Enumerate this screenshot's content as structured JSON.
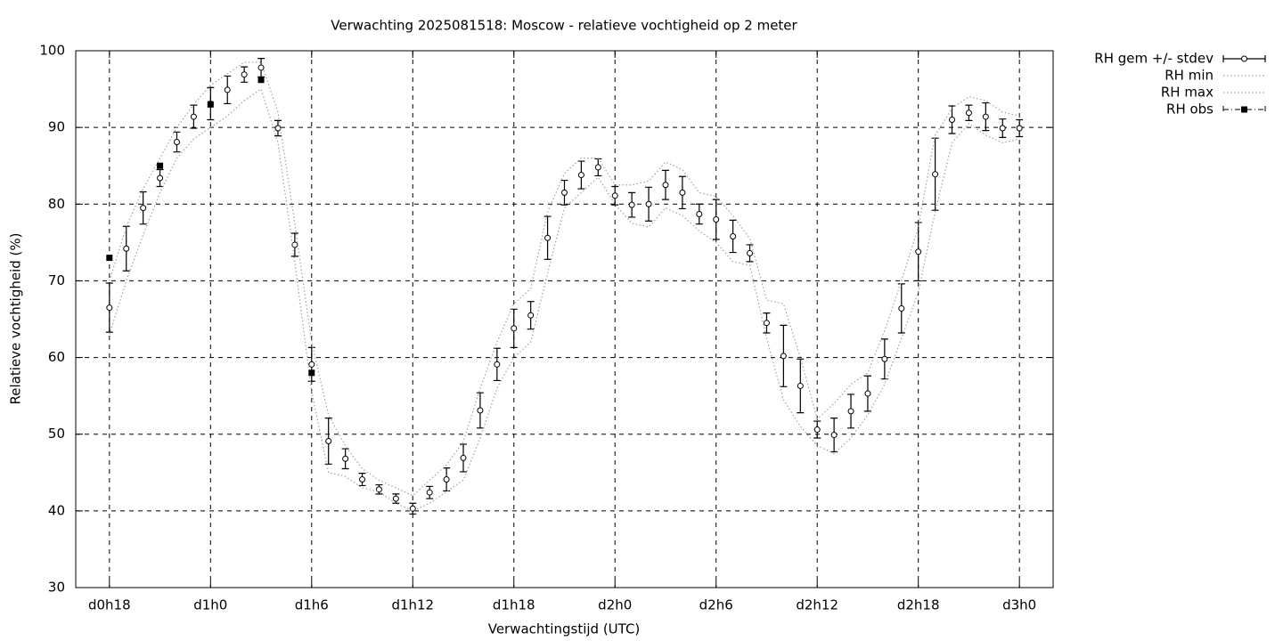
{
  "chart_data": {
    "type": "errorbar",
    "title": "Verwachting 2025081518: Moscow - relatieve vochtigheid op 2 meter",
    "xlabel": "Verwachtingstijd (UTC)",
    "ylabel": "Relatieve vochtigheid (%)",
    "x": [
      18,
      19,
      20,
      21,
      22,
      23,
      24,
      25,
      26,
      27,
      28,
      29,
      30,
      31,
      32,
      33,
      34,
      35,
      36,
      37,
      38,
      39,
      40,
      41,
      42,
      43,
      44,
      45,
      46,
      47,
      48,
      49,
      50,
      51,
      52,
      53,
      54,
      55,
      56,
      57,
      58,
      59,
      60,
      61,
      62,
      63,
      64,
      65,
      66,
      67,
      68,
      69,
      70,
      71,
      72
    ],
    "xlim": [
      16,
      74
    ],
    "xticks": [
      {
        "value": 18,
        "label": "d0h18"
      },
      {
        "value": 24,
        "label": "d1h0"
      },
      {
        "value": 30,
        "label": "d1h6"
      },
      {
        "value": 36,
        "label": "d1h12"
      },
      {
        "value": 42,
        "label": "d1h18"
      },
      {
        "value": 48,
        "label": "d2h0"
      },
      {
        "value": 54,
        "label": "d2h6"
      },
      {
        "value": 60,
        "label": "d2h12"
      },
      {
        "value": 66,
        "label": "d2h18"
      },
      {
        "value": 72,
        "label": "d3h0"
      }
    ],
    "ylim": [
      30,
      100
    ],
    "yticks": [
      30,
      40,
      50,
      60,
      70,
      80,
      90,
      100
    ],
    "grid": true,
    "legend": "outside-top-right",
    "series": [
      {
        "name": "RH gem +/- stdev",
        "style": "errorbar",
        "color": "#000000",
        "values": [
          66.5,
          74.2,
          79.5,
          83.4,
          88.1,
          91.4,
          93.1,
          94.9,
          96.9,
          97.8,
          89.9,
          74.7,
          59.1,
          49.1,
          46.8,
          44.1,
          42.8,
          41.6,
          40.3,
          42.4,
          44.1,
          46.9,
          53.1,
          59.1,
          63.8,
          65.5,
          75.6,
          81.5,
          83.8,
          84.8,
          81.1,
          79.9,
          80.0,
          82.5,
          81.5,
          78.7,
          78.0,
          75.8,
          73.6,
          64.5,
          60.2,
          56.3,
          50.6,
          49.9,
          53.0,
          55.3,
          59.8,
          66.4,
          73.8,
          83.9,
          91.0,
          91.9,
          91.4,
          89.9,
          89.9
        ],
        "errors": [
          3.2,
          2.9,
          2.1,
          1.1,
          1.3,
          1.5,
          2.1,
          1.8,
          1.0,
          1.2,
          1.0,
          1.5,
          2.2,
          3.0,
          1.3,
          0.8,
          0.6,
          0.6,
          0.7,
          0.8,
          1.5,
          1.8,
          2.3,
          2.1,
          2.5,
          1.8,
          2.8,
          1.6,
          1.8,
          1.1,
          1.2,
          1.6,
          2.2,
          1.9,
          2.1,
          1.3,
          2.6,
          2.1,
          1.1,
          1.3,
          4.0,
          3.5,
          1.1,
          2.2,
          2.2,
          2.3,
          2.6,
          3.2,
          3.8,
          4.7,
          1.8,
          1.0,
          1.8,
          1.2,
          1.1
        ]
      },
      {
        "name": "RH min",
        "style": "dotted",
        "color": "#a0a0a0",
        "values": [
          63,
          70,
          76,
          81.5,
          86,
          88.5,
          90,
          91.5,
          93.5,
          95,
          88,
          72.5,
          55.5,
          45,
          44.5,
          43,
          42.5,
          41,
          40,
          41,
          42.5,
          44,
          49.5,
          56,
          60,
          62,
          71,
          79.5,
          81.5,
          83.5,
          80,
          77.5,
          77,
          79.5,
          78.5,
          76.5,
          75,
          72.5,
          72,
          62.5,
          54.5,
          51,
          48.5,
          47.5,
          49.5,
          52.5,
          56.5,
          62.5,
          68.5,
          79,
          88,
          90.5,
          89,
          88,
          88.5
        ]
      },
      {
        "name": "RH max",
        "style": "dotted",
        "color": "#a0a0a0",
        "values": [
          70,
          77,
          82,
          86,
          90,
          93,
          95.5,
          97,
          98.5,
          98.5,
          92,
          77.5,
          62,
          52.5,
          48.5,
          45.5,
          44,
          43,
          42,
          44,
          46,
          49,
          56,
          62,
          67,
          69,
          79,
          84,
          86,
          86,
          82.5,
          82.5,
          83,
          85.5,
          84.5,
          81.5,
          81,
          78.5,
          75.5,
          67.5,
          67,
          60,
          52,
          54,
          56.5,
          58,
          63.5,
          70,
          77,
          89,
          92.5,
          94,
          93.5,
          92,
          91.5
        ]
      },
      {
        "name": "RH obs",
        "style": "points",
        "color": "#000000",
        "x": [
          18,
          21,
          24,
          27,
          30
        ],
        "values": [
          73,
          85,
          93,
          96.2,
          58
        ]
      }
    ]
  }
}
